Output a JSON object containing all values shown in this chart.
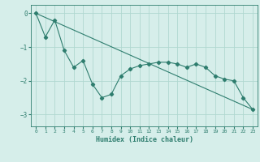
{
  "line1_x": [
    0,
    1,
    2,
    3,
    4,
    5,
    6,
    7,
    8,
    9,
    10,
    11,
    12,
    13,
    14,
    15,
    16,
    17,
    18,
    19,
    20,
    21,
    22,
    23
  ],
  "line1_y": [
    0.0,
    -0.7,
    -0.2,
    -1.1,
    -1.6,
    -1.4,
    -2.1,
    -2.5,
    -2.4,
    -1.85,
    -1.65,
    -1.55,
    -1.5,
    -1.45,
    -1.45,
    -1.5,
    -1.6,
    -1.5,
    -1.6,
    -1.85,
    -1.95,
    -2.0,
    -2.5,
    -2.85
  ],
  "line2_x": [
    0,
    23
  ],
  "line2_y": [
    0.0,
    -2.85
  ],
  "color": "#2e7d6e",
  "bg_color": "#d6eeea",
  "grid_color": "#b0d8d0",
  "xlabel": "Humidex (Indice chaleur)",
  "xlim": [
    -0.5,
    23.5
  ],
  "ylim": [
    -3.35,
    0.25
  ],
  "yticks": [
    0,
    -1,
    -2,
    -3
  ],
  "xticks": [
    0,
    1,
    2,
    3,
    4,
    5,
    6,
    7,
    8,
    9,
    10,
    11,
    12,
    13,
    14,
    15,
    16,
    17,
    18,
    19,
    20,
    21,
    22,
    23
  ]
}
